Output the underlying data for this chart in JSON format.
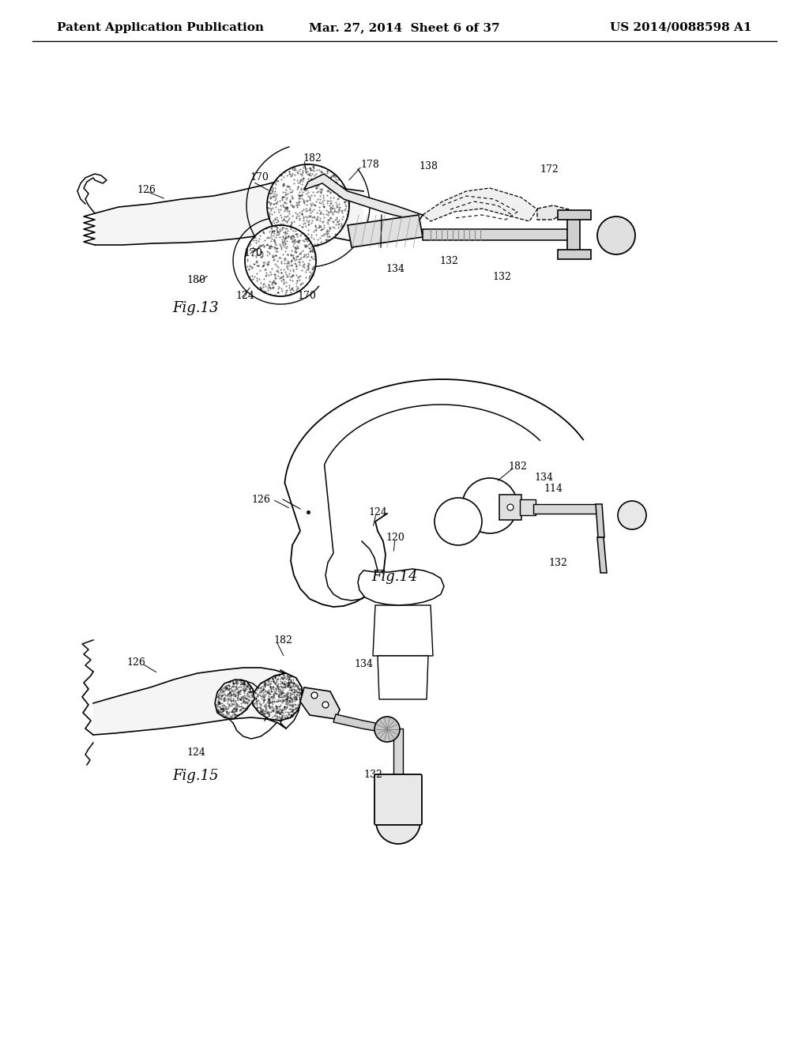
{
  "background_color": "#ffffff",
  "header_left": "Patent Application Publication",
  "header_center": "Mar. 27, 2014  Sheet 6 of 37",
  "header_right": "US 2014/0088598 A1",
  "header_fontsize": 11,
  "fig_label_fontsize": 13,
  "ref_fontsize": 9
}
